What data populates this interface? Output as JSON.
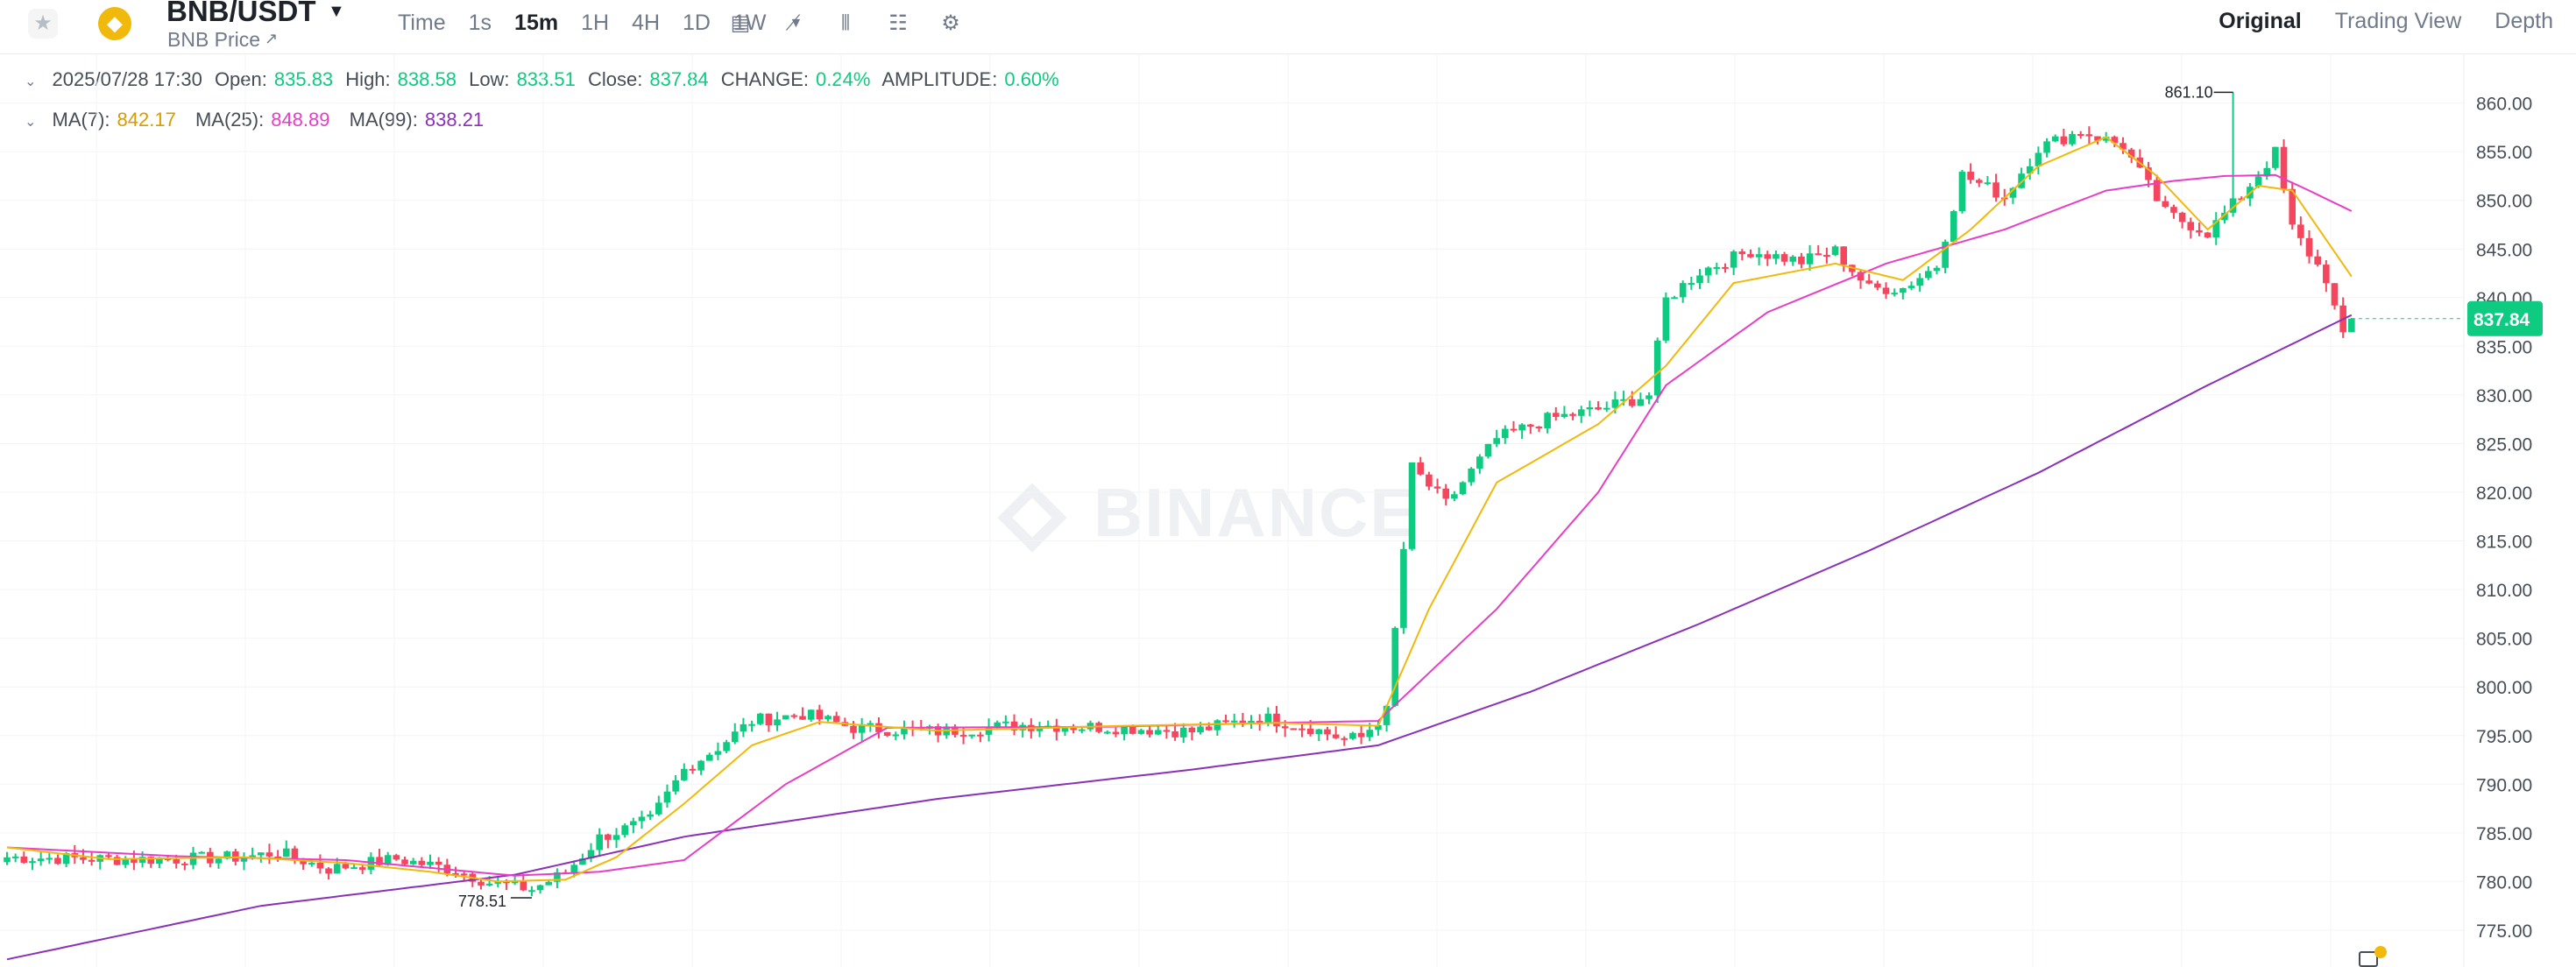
{
  "header": {
    "pair": "BNB/USDT",
    "subtitle": "BNB Price",
    "intervals": [
      {
        "label": "Time",
        "active": false
      },
      {
        "label": "1s",
        "active": false
      },
      {
        "label": "15m",
        "active": true
      },
      {
        "label": "1H",
        "active": false
      },
      {
        "label": "4H",
        "active": false
      },
      {
        "label": "1D",
        "active": false
      },
      {
        "label": "1W",
        "active": false
      }
    ],
    "views": [
      {
        "label": "Original",
        "active": true
      },
      {
        "label": "Trading View",
        "active": false
      },
      {
        "label": "Depth",
        "active": false
      }
    ],
    "icons": [
      "star-icon",
      "bnb-coin-icon",
      "caret-down-icon",
      "external-link-icon",
      "calendar-icon",
      "indicator-icon",
      "candle-type-icon",
      "chart-settings-icon",
      "gear-icon"
    ]
  },
  "ohlc": {
    "date_label": "2025/07/28 17:30",
    "open_label": "Open:",
    "open": "835.83",
    "high_label": "High:",
    "high": "838.58",
    "low_label": "Low:",
    "low": "833.51",
    "close_label": "Close:",
    "close": "837.84",
    "change_label": "CHANGE:",
    "change": "0.24%",
    "amplitude_label": "AMPLITUDE:",
    "amplitude": "0.60%"
  },
  "ma": {
    "ma7_label": "MA(7):",
    "ma7": "842.17",
    "ma25_label": "MA(25):",
    "ma25": "848.89",
    "ma99_label": "MA(99):",
    "ma99": "838.21"
  },
  "watermark": "BINANCE",
  "colors": {
    "up": "#0ecb81",
    "down": "#f6465d",
    "ma7": "#f0b90b",
    "ma25": "#e83ec6",
    "ma99": "#8a31b8",
    "price_tag": "#0ecb81"
  },
  "chart_data": {
    "type": "candlestick",
    "interval": "15m",
    "yticks": [
      "775.00",
      "780.00",
      "785.00",
      "790.00",
      "795.00",
      "800.00",
      "805.00",
      "810.00",
      "815.00",
      "820.00",
      "825.00",
      "830.00",
      "835.00",
      "840.00",
      "845.00",
      "850.00",
      "855.00",
      "860.00"
    ],
    "ylim": [
      772,
      864
    ],
    "last_price": "837.84",
    "high_marker": "861.10",
    "low_marker": "778.51",
    "legend": "top-left",
    "grid": true,
    "anchors": [
      [
        0,
        782.5
      ],
      [
        12,
        782.3
      ],
      [
        20,
        782.3
      ],
      [
        28,
        782.5
      ],
      [
        32,
        783.0
      ],
      [
        38,
        781.3
      ],
      [
        46,
        782.3
      ],
      [
        53,
        781.2
      ],
      [
        57,
        779.9
      ],
      [
        62,
        779.2
      ],
      [
        66,
        780.9
      ],
      [
        70,
        784.5
      ],
      [
        76,
        786.3
      ],
      [
        80,
        791.5
      ],
      [
        84,
        793.8
      ],
      [
        88,
        796.5
      ],
      [
        94,
        797.2
      ],
      [
        100,
        795.8
      ],
      [
        110,
        795.4
      ],
      [
        120,
        796.1
      ],
      [
        132,
        795.8
      ],
      [
        140,
        795.4
      ],
      [
        148,
        796.9
      ],
      [
        154,
        795.8
      ],
      [
        158,
        794.6
      ],
      [
        160,
        794.8
      ],
      [
        163,
        797.5
      ],
      [
        166,
        822.5
      ],
      [
        170,
        818.8
      ],
      [
        176,
        825.5
      ],
      [
        182,
        827.5
      ],
      [
        188,
        828.5
      ],
      [
        194,
        830.0
      ],
      [
        196,
        839.8
      ],
      [
        200,
        842.7
      ],
      [
        206,
        844.8
      ],
      [
        212,
        843.7
      ],
      [
        216,
        844.8
      ],
      [
        220,
        840.9
      ],
      [
        224,
        841.0
      ],
      [
        228,
        843.3
      ],
      [
        231,
        852.6
      ],
      [
        236,
        850.4
      ],
      [
        240,
        855.4
      ],
      [
        245,
        857.1
      ],
      [
        250,
        855.6
      ],
      [
        255,
        848.7
      ],
      [
        260,
        846.7
      ],
      [
        264,
        850.5
      ],
      [
        268,
        854.9
      ],
      [
        270,
        847.1
      ],
      [
        274,
        842.0
      ],
      [
        276,
        835.8
      ],
      [
        277,
        837.84
      ]
    ],
    "ma7": [
      [
        0,
        783.5
      ],
      [
        12,
        782.3
      ],
      [
        28,
        782.5
      ],
      [
        40,
        781.9
      ],
      [
        50,
        781.0
      ],
      [
        58,
        780.0
      ],
      [
        66,
        780.2
      ],
      [
        72,
        782.5
      ],
      [
        80,
        788.0
      ],
      [
        88,
        794.0
      ],
      [
        96,
        796.4
      ],
      [
        110,
        795.5
      ],
      [
        132,
        796.0
      ],
      [
        150,
        796.3
      ],
      [
        162,
        796.0
      ],
      [
        168,
        808.0
      ],
      [
        176,
        821.0
      ],
      [
        188,
        827.0
      ],
      [
        196,
        833.0
      ],
      [
        204,
        841.5
      ],
      [
        216,
        843.5
      ],
      [
        224,
        841.8
      ],
      [
        232,
        847.0
      ],
      [
        240,
        853.5
      ],
      [
        248,
        856.5
      ],
      [
        254,
        852.5
      ],
      [
        260,
        847.0
      ],
      [
        266,
        851.5
      ],
      [
        270,
        851.0
      ],
      [
        277,
        842.17
      ]
    ],
    "ma25": [
      [
        0,
        783.5
      ],
      [
        20,
        782.6
      ],
      [
        40,
        782.2
      ],
      [
        60,
        780.6
      ],
      [
        70,
        781.0
      ],
      [
        80,
        782.2
      ],
      [
        92,
        790.0
      ],
      [
        104,
        795.8
      ],
      [
        130,
        795.9
      ],
      [
        150,
        796.3
      ],
      [
        162,
        796.5
      ],
      [
        176,
        808.0
      ],
      [
        188,
        820.0
      ],
      [
        196,
        831.0
      ],
      [
        208,
        838.5
      ],
      [
        222,
        843.5
      ],
      [
        236,
        847.0
      ],
      [
        248,
        851.0
      ],
      [
        256,
        852.0
      ],
      [
        262,
        852.5
      ],
      [
        268,
        852.6
      ],
      [
        272,
        851.0
      ],
      [
        277,
        848.89
      ]
    ],
    "ma99": [
      [
        0,
        772.0
      ],
      [
        30,
        777.5
      ],
      [
        60,
        780.7
      ],
      [
        80,
        784.6
      ],
      [
        110,
        788.5
      ],
      [
        140,
        791.5
      ],
      [
        162,
        794.0
      ],
      [
        180,
        799.5
      ],
      [
        200,
        806.5
      ],
      [
        220,
        814.0
      ],
      [
        240,
        822.0
      ],
      [
        260,
        831.0
      ],
      [
        277,
        838.21
      ]
    ]
  }
}
